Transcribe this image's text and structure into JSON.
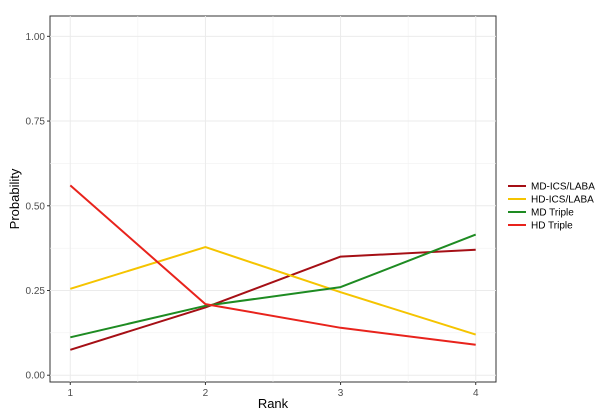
{
  "chart_data": {
    "type": "line",
    "xlabel": "Rank",
    "ylabel": "Probability",
    "x": [
      1,
      2,
      3,
      4
    ],
    "xlim": [
      0.85,
      4.15
    ],
    "ylim": [
      -0.02,
      1.06
    ],
    "x_ticks": [
      "1",
      "2",
      "3",
      "4"
    ],
    "y_ticks": [
      "0.00",
      "0.25",
      "0.50",
      "0.75",
      "1.00"
    ],
    "grid": true,
    "legend_position": "right",
    "series": [
      {
        "name": "MD-ICS/LABA",
        "color": "#a50f15",
        "values": [
          0.075,
          0.2,
          0.35,
          0.37
        ]
      },
      {
        "name": "HD-ICS/LABA",
        "color": "#f5c400",
        "values": [
          0.255,
          0.378,
          0.245,
          0.12
        ]
      },
      {
        "name": "MD Triple",
        "color": "#1e8b22",
        "values": [
          0.112,
          0.205,
          0.26,
          0.415
        ]
      },
      {
        "name": "HD Triple",
        "color": "#e8231c",
        "values": [
          0.56,
          0.21,
          0.14,
          0.09
        ]
      }
    ]
  }
}
